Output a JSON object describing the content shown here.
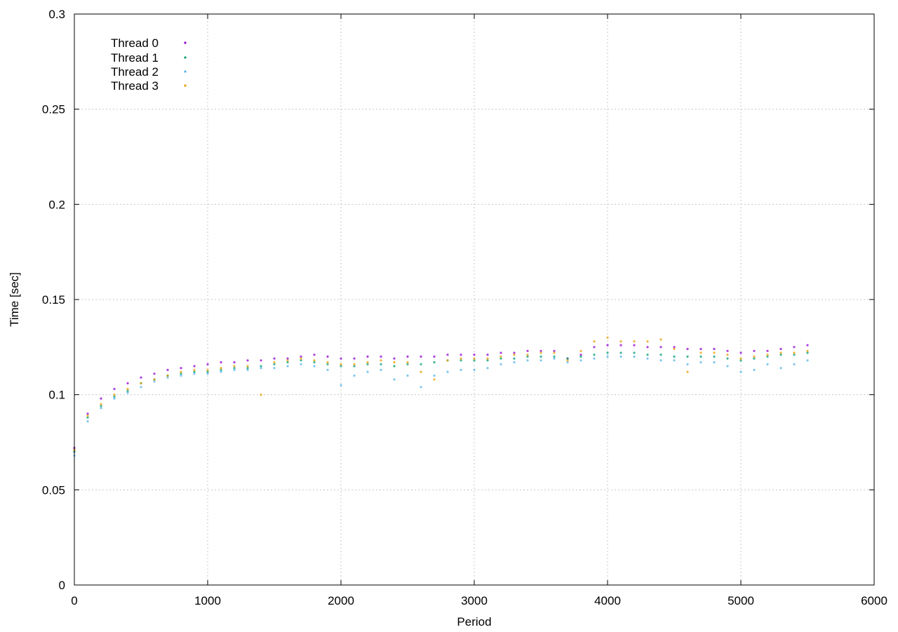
{
  "chart_data": {
    "type": "scatter",
    "title": "",
    "xlabel": "Period",
    "ylabel": "Time [sec]",
    "xlim": [
      0,
      6000
    ],
    "ylim": [
      0,
      0.3
    ],
    "x_ticks": [
      "0",
      "1000",
      "2000",
      "3000",
      "4000",
      "5000",
      "6000"
    ],
    "y_ticks": [
      "0",
      "0.05",
      "0.1",
      "0.15",
      "0.2",
      "0.25",
      "0.3"
    ],
    "grid": true,
    "legend_position": "top-left",
    "series": [
      {
        "name": "Thread 0",
        "color": "#9400d3",
        "x": [
          0,
          100,
          200,
          300,
          400,
          500,
          600,
          700,
          800,
          900,
          1000,
          1100,
          1200,
          1300,
          1400,
          1500,
          1600,
          1700,
          1800,
          1900,
          2000,
          2100,
          2200,
          2300,
          2400,
          2500,
          2600,
          2700,
          2800,
          2900,
          3000,
          3100,
          3200,
          3300,
          3400,
          3500,
          3600,
          3700,
          3800,
          3900,
          4000,
          4100,
          4200,
          4300,
          4400,
          4500,
          4600,
          4700,
          4800,
          4900,
          5000,
          5100,
          5200,
          5300,
          5400,
          5500
        ],
        "y": [
          0.072,
          0.09,
          0.098,
          0.103,
          0.106,
          0.109,
          0.111,
          0.113,
          0.114,
          0.115,
          0.116,
          0.117,
          0.117,
          0.118,
          0.118,
          0.119,
          0.119,
          0.12,
          0.121,
          0.12,
          0.119,
          0.119,
          0.12,
          0.12,
          0.119,
          0.12,
          0.12,
          0.12,
          0.121,
          0.121,
          0.121,
          0.121,
          0.122,
          0.122,
          0.123,
          0.123,
          0.123,
          0.119,
          0.121,
          0.125,
          0.126,
          0.126,
          0.126,
          0.125,
          0.125,
          0.125,
          0.124,
          0.124,
          0.124,
          0.123,
          0.122,
          0.123,
          0.123,
          0.124,
          0.125,
          0.126
        ]
      },
      {
        "name": "Thread 1",
        "color": "#009e73",
        "x": [
          0,
          100,
          200,
          300,
          400,
          500,
          600,
          700,
          800,
          900,
          1000,
          1100,
          1200,
          1300,
          1400,
          1500,
          1600,
          1700,
          1800,
          1900,
          2000,
          2100,
          2200,
          2300,
          2400,
          2500,
          2600,
          2700,
          2800,
          2900,
          3000,
          3100,
          3200,
          3300,
          3400,
          3500,
          3600,
          3700,
          3800,
          3900,
          4000,
          4100,
          4200,
          4300,
          4400,
          4500,
          4600,
          4700,
          4800,
          4900,
          5000,
          5100,
          5200,
          5300,
          5400,
          5500
        ],
        "y": [
          0.07,
          0.088,
          0.094,
          0.099,
          0.102,
          0.106,
          0.108,
          0.11,
          0.111,
          0.112,
          0.112,
          0.113,
          0.114,
          0.114,
          0.115,
          0.116,
          0.117,
          0.118,
          0.117,
          0.116,
          0.115,
          0.115,
          0.116,
          0.116,
          0.115,
          0.116,
          0.116,
          0.117,
          0.118,
          0.118,
          0.118,
          0.118,
          0.119,
          0.119,
          0.12,
          0.12,
          0.12,
          0.119,
          0.12,
          0.121,
          0.122,
          0.122,
          0.122,
          0.121,
          0.121,
          0.12,
          0.12,
          0.12,
          0.12,
          0.119,
          0.118,
          0.119,
          0.12,
          0.121,
          0.121,
          0.122
        ]
      },
      {
        "name": "Thread 2",
        "color": "#56b4e9",
        "x": [
          0,
          100,
          200,
          300,
          400,
          500,
          600,
          700,
          800,
          900,
          1000,
          1100,
          1200,
          1300,
          1400,
          1500,
          1600,
          1700,
          1800,
          1900,
          2000,
          2100,
          2200,
          2300,
          2400,
          2500,
          2600,
          2700,
          2800,
          2900,
          3000,
          3100,
          3200,
          3300,
          3400,
          3500,
          3600,
          3700,
          3800,
          3900,
          4000,
          4100,
          4200,
          4300,
          4400,
          4500,
          4600,
          4700,
          4800,
          4900,
          5000,
          5100,
          5200,
          5300,
          5400,
          5500
        ],
        "y": [
          0.068,
          0.086,
          0.093,
          0.098,
          0.101,
          0.104,
          0.107,
          0.109,
          0.11,
          0.111,
          0.111,
          0.112,
          0.113,
          0.113,
          0.114,
          0.114,
          0.115,
          0.116,
          0.115,
          0.113,
          0.105,
          0.11,
          0.112,
          0.113,
          0.108,
          0.11,
          0.104,
          0.11,
          0.112,
          0.113,
          0.113,
          0.114,
          0.116,
          0.117,
          0.118,
          0.118,
          0.119,
          0.117,
          0.118,
          0.119,
          0.12,
          0.12,
          0.12,
          0.119,
          0.118,
          0.118,
          0.116,
          0.117,
          0.117,
          0.115,
          0.112,
          0.113,
          0.116,
          0.114,
          0.116,
          0.118
        ]
      },
      {
        "name": "Thread 3",
        "color": "#e69f00",
        "x": [
          0,
          100,
          200,
          300,
          400,
          500,
          600,
          700,
          800,
          900,
          1000,
          1100,
          1200,
          1300,
          1400,
          1500,
          1600,
          1700,
          1800,
          1900,
          2000,
          2100,
          2200,
          2300,
          2400,
          2500,
          2600,
          2700,
          2800,
          2900,
          3000,
          3100,
          3200,
          3300,
          3400,
          3500,
          3600,
          3700,
          3800,
          3900,
          4000,
          4100,
          4200,
          4300,
          4400,
          4500,
          4600,
          4700,
          4800,
          4900,
          5000,
          5100,
          5200,
          5300,
          5400,
          5500
        ],
        "y": [
          0.071,
          0.089,
          0.095,
          0.1,
          0.103,
          0.106,
          0.108,
          0.11,
          0.112,
          0.113,
          0.113,
          0.114,
          0.115,
          0.115,
          0.1,
          0.117,
          0.118,
          0.119,
          0.118,
          0.117,
          0.116,
          0.116,
          0.117,
          0.118,
          0.117,
          0.117,
          0.112,
          0.108,
          0.118,
          0.119,
          0.119,
          0.119,
          0.12,
          0.121,
          0.121,
          0.122,
          0.122,
          0.118,
          0.123,
          0.128,
          0.13,
          0.128,
          0.128,
          0.128,
          0.129,
          0.124,
          0.112,
          0.122,
          0.122,
          0.121,
          0.119,
          0.12,
          0.121,
          0.122,
          0.122,
          0.123
        ]
      }
    ]
  }
}
